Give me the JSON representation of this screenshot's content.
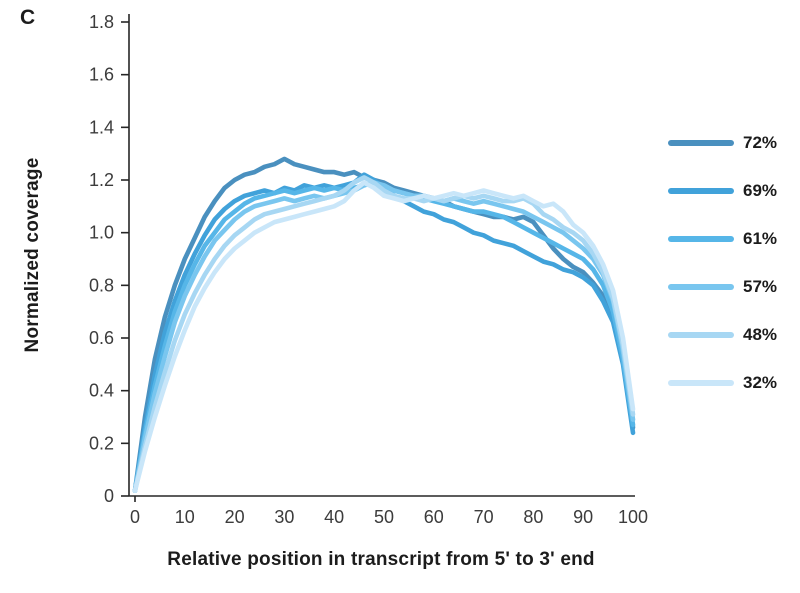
{
  "chart_data": {
    "type": "line",
    "panel_label": "C",
    "xlabel": "Relative position in transcript from 5' to 3' end",
    "ylabel": "Normalized coverage",
    "xlim": [
      0,
      100
    ],
    "ylim": [
      0,
      1.8
    ],
    "x_ticks": [
      0,
      10,
      20,
      30,
      40,
      50,
      60,
      70,
      80,
      90,
      100
    ],
    "y_ticks": [
      "0",
      "0.2",
      "0.4",
      "0.6",
      "0.8",
      "1.0",
      "1.2",
      "1.4",
      "1.6",
      "1.8"
    ],
    "grid": false,
    "legend_position": "right",
    "axis_color": "#262626",
    "x_step": 2,
    "series": [
      {
        "name": "72%",
        "color": "#4a90bf",
        "values": [
          0.02,
          0.3,
          0.52,
          0.68,
          0.8,
          0.9,
          0.98,
          1.06,
          1.12,
          1.17,
          1.2,
          1.22,
          1.23,
          1.25,
          1.26,
          1.28,
          1.26,
          1.25,
          1.24,
          1.23,
          1.23,
          1.22,
          1.23,
          1.21,
          1.2,
          1.19,
          1.17,
          1.16,
          1.15,
          1.14,
          1.13,
          1.12,
          1.1,
          1.09,
          1.08,
          1.07,
          1.06,
          1.06,
          1.05,
          1.06,
          1.04,
          0.99,
          0.94,
          0.9,
          0.87,
          0.85,
          0.81,
          0.76,
          0.68,
          0.54,
          0.26
        ]
      },
      {
        "name": "69%",
        "color": "#41a2da",
        "values": [
          0.02,
          0.26,
          0.46,
          0.62,
          0.74,
          0.84,
          0.92,
          0.99,
          1.05,
          1.09,
          1.12,
          1.14,
          1.15,
          1.16,
          1.15,
          1.17,
          1.16,
          1.18,
          1.17,
          1.18,
          1.17,
          1.18,
          1.19,
          1.22,
          1.2,
          1.17,
          1.14,
          1.12,
          1.1,
          1.08,
          1.07,
          1.05,
          1.04,
          1.02,
          1.0,
          0.99,
          0.97,
          0.96,
          0.95,
          0.93,
          0.91,
          0.89,
          0.88,
          0.86,
          0.85,
          0.83,
          0.8,
          0.74,
          0.66,
          0.5,
          0.24
        ]
      },
      {
        "name": "61%",
        "color": "#56b6e8",
        "values": [
          0.02,
          0.24,
          0.42,
          0.57,
          0.7,
          0.8,
          0.88,
          0.95,
          1.0,
          1.05,
          1.08,
          1.11,
          1.13,
          1.14,
          1.15,
          1.16,
          1.15,
          1.16,
          1.17,
          1.16,
          1.17,
          1.16,
          1.17,
          1.18,
          1.19,
          1.17,
          1.16,
          1.15,
          1.14,
          1.13,
          1.12,
          1.11,
          1.1,
          1.09,
          1.08,
          1.08,
          1.07,
          1.06,
          1.04,
          1.02,
          1.0,
          0.98,
          0.96,
          0.94,
          0.92,
          0.9,
          0.86,
          0.8,
          0.7,
          0.52,
          0.27
        ]
      },
      {
        "name": "57%",
        "color": "#79c6ef",
        "values": [
          0.02,
          0.22,
          0.39,
          0.53,
          0.66,
          0.76,
          0.84,
          0.91,
          0.97,
          1.01,
          1.05,
          1.08,
          1.1,
          1.11,
          1.12,
          1.13,
          1.12,
          1.13,
          1.14,
          1.13,
          1.14,
          1.15,
          1.16,
          1.18,
          1.19,
          1.18,
          1.16,
          1.15,
          1.14,
          1.14,
          1.13,
          1.12,
          1.13,
          1.12,
          1.11,
          1.12,
          1.11,
          1.1,
          1.09,
          1.08,
          1.06,
          1.04,
          1.02,
          1.0,
          0.97,
          0.94,
          0.9,
          0.84,
          0.74,
          0.55,
          0.29
        ]
      },
      {
        "name": "48%",
        "color": "#a7d7f3",
        "values": [
          0.02,
          0.19,
          0.34,
          0.47,
          0.59,
          0.69,
          0.77,
          0.84,
          0.9,
          0.95,
          0.99,
          1.02,
          1.05,
          1.07,
          1.08,
          1.09,
          1.1,
          1.11,
          1.12,
          1.13,
          1.14,
          1.16,
          1.19,
          1.21,
          1.19,
          1.16,
          1.14,
          1.13,
          1.13,
          1.12,
          1.13,
          1.12,
          1.13,
          1.14,
          1.13,
          1.14,
          1.13,
          1.12,
          1.12,
          1.13,
          1.11,
          1.07,
          1.05,
          1.02,
          1.0,
          0.97,
          0.92,
          0.85,
          0.75,
          0.57,
          0.31
        ]
      },
      {
        "name": "32%",
        "color": "#c9e6f9",
        "values": [
          0.02,
          0.17,
          0.3,
          0.42,
          0.53,
          0.63,
          0.72,
          0.79,
          0.85,
          0.9,
          0.94,
          0.97,
          1.0,
          1.02,
          1.04,
          1.05,
          1.06,
          1.07,
          1.08,
          1.09,
          1.1,
          1.12,
          1.16,
          1.19,
          1.17,
          1.14,
          1.13,
          1.12,
          1.13,
          1.14,
          1.13,
          1.14,
          1.15,
          1.14,
          1.15,
          1.16,
          1.15,
          1.14,
          1.13,
          1.14,
          1.12,
          1.1,
          1.11,
          1.08,
          1.03,
          1.0,
          0.95,
          0.88,
          0.78,
          0.6,
          0.33
        ]
      }
    ]
  }
}
